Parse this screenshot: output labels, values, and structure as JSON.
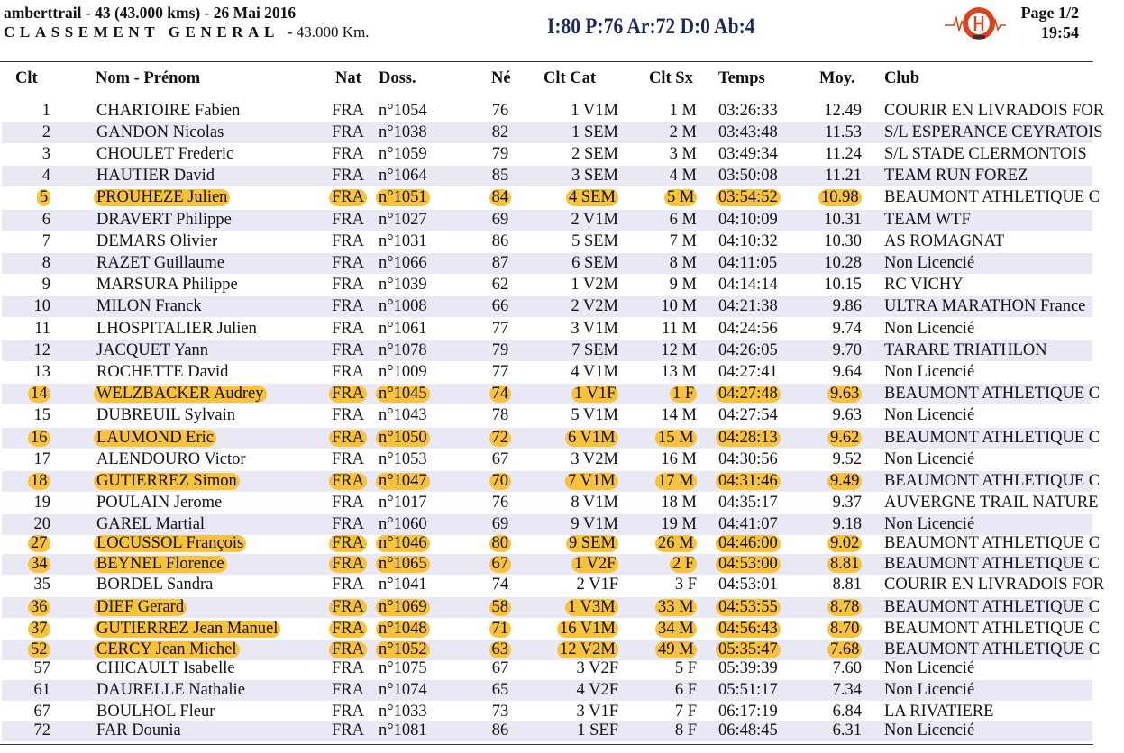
{
  "header": {
    "event_line": "amberttrail - 43 (43.000 kms) - 26 Mai 2016",
    "classement": "CLASSEMENT GENERAL",
    "distance": "- 43.000 Km.",
    "summary": "I:80 P:76 Ar:72 D:0 Ab:4",
    "page": "Page 1/2",
    "time": "19:54"
  },
  "columns": {
    "clt": "Clt",
    "name": "Nom - Prénom",
    "nat": "Nat",
    "doss": "Doss.",
    "ne": "Né",
    "cat": "Clt Cat",
    "sx": "Clt Sx",
    "tps": "Temps",
    "moy": "Moy.",
    "club": "Club"
  },
  "colors": {
    "highlight": "#f9c23c",
    "stripe": "#e9e9f5",
    "summary": "#1c2a5e",
    "logo": "#d9441c"
  },
  "rows": [
    {
      "clt": "1",
      "name": "CHARTOIRE Fabien",
      "nat": "FRA",
      "doss": "n°1054",
      "ne": "76",
      "cat": "1 V1M",
      "sx": "1 M",
      "tps": "03:26:33",
      "moy": "12.49",
      "club": "COURIR EN LIVRADOIS FOR",
      "hl": false
    },
    {
      "clt": "2",
      "name": "GANDON Nicolas",
      "nat": "FRA",
      "doss": "n°1038",
      "ne": "82",
      "cat": "1 SEM",
      "sx": "2 M",
      "tps": "03:43:48",
      "moy": "11.53",
      "club": "S/L ESPERANCE CEYRATOIS",
      "hl": false
    },
    {
      "clt": "3",
      "name": "CHOULET Frederic",
      "nat": "FRA",
      "doss": "n°1059",
      "ne": "79",
      "cat": "2 SEM",
      "sx": "3 M",
      "tps": "03:49:34",
      "moy": "11.24",
      "club": "S/L STADE CLERMONTOIS",
      "hl": false
    },
    {
      "clt": "4",
      "name": "HAUTIER David",
      "nat": "FRA",
      "doss": "n°1064",
      "ne": "85",
      "cat": "3 SEM",
      "sx": "4 M",
      "tps": "03:50:08",
      "moy": "11.21",
      "club": "TEAM RUN FOREZ",
      "hl": false
    },
    {
      "clt": "5",
      "name": "PROUHEZE Julien",
      "nat": "FRA",
      "doss": "n°1051",
      "ne": "84",
      "cat": "4 SEM",
      "sx": "5 M",
      "tps": "03:54:52",
      "moy": "10.98",
      "club": "BEAUMONT ATHLETIQUE C",
      "hl": true
    },
    {
      "clt": "6",
      "name": "DRAVERT Philippe",
      "nat": "FRA",
      "doss": "n°1027",
      "ne": "69",
      "cat": "2 V1M",
      "sx": "6 M",
      "tps": "04:10:09",
      "moy": "10.31",
      "club": "TEAM WTF",
      "hl": false
    },
    {
      "clt": "7",
      "name": "DEMARS Olivier",
      "nat": "FRA",
      "doss": "n°1031",
      "ne": "86",
      "cat": "5 SEM",
      "sx": "7 M",
      "tps": "04:10:32",
      "moy": "10.30",
      "club": "AS ROMAGNAT",
      "hl": false
    },
    {
      "clt": "8",
      "name": "RAZET Guillaume",
      "nat": "FRA",
      "doss": "n°1066",
      "ne": "87",
      "cat": "6 SEM",
      "sx": "8 M",
      "tps": "04:11:05",
      "moy": "10.28",
      "club": "Non Licencié",
      "hl": false
    },
    {
      "clt": "9",
      "name": "MARSURA Philippe",
      "nat": "FRA",
      "doss": "n°1039",
      "ne": "62",
      "cat": "1 V2M",
      "sx": "9 M",
      "tps": "04:14:14",
      "moy": "10.15",
      "club": "RC VICHY",
      "hl": false
    },
    {
      "clt": "10",
      "name": "MILON Franck",
      "nat": "FRA",
      "doss": "n°1008",
      "ne": "66",
      "cat": "2 V2M",
      "sx": "10 M",
      "tps": "04:21:38",
      "moy": "9.86",
      "club": "ULTRA MARATHON France",
      "hl": false
    },
    {
      "clt": "11",
      "name": "LHOSPITALIER Julien",
      "nat": "FRA",
      "doss": "n°1061",
      "ne": "77",
      "cat": "3 V1M",
      "sx": "11 M",
      "tps": "04:24:56",
      "moy": "9.74",
      "club": "Non Licencié",
      "hl": false
    },
    {
      "clt": "12",
      "name": "JACQUET Yann",
      "nat": "FRA",
      "doss": "n°1078",
      "ne": "79",
      "cat": "7 SEM",
      "sx": "12 M",
      "tps": "04:26:05",
      "moy": "9.70",
      "club": "TARARE TRIATHLON",
      "hl": false
    },
    {
      "clt": "13",
      "name": "ROCHETTE David",
      "nat": "FRA",
      "doss": "n°1009",
      "ne": "77",
      "cat": "4 V1M",
      "sx": "13 M",
      "tps": "04:27:41",
      "moy": "9.64",
      "club": "Non Licencié",
      "hl": false
    },
    {
      "clt": "14",
      "name": "WELZBACKER Audrey",
      "nat": "FRA",
      "doss": "n°1045",
      "ne": "74",
      "cat": "1 V1F",
      "sx": "1 F",
      "tps": "04:27:48",
      "moy": "9.63",
      "club": "BEAUMONT ATHLETIQUE C",
      "hl": true
    },
    {
      "clt": "15",
      "name": "DUBREUIL Sylvain",
      "nat": "FRA",
      "doss": "n°1043",
      "ne": "78",
      "cat": "5 V1M",
      "sx": "14 M",
      "tps": "04:27:54",
      "moy": "9.63",
      "club": "Non Licencié",
      "hl": false
    },
    {
      "clt": "16",
      "name": "LAUMOND Eric",
      "nat": "FRA",
      "doss": "n°1050",
      "ne": "72",
      "cat": "6 V1M",
      "sx": "15 M",
      "tps": "04:28:13",
      "moy": "9.62",
      "club": "BEAUMONT ATHLETIQUE C",
      "hl": true
    },
    {
      "clt": "17",
      "name": "ALENDOURO Victor",
      "nat": "FRA",
      "doss": "n°1053",
      "ne": "67",
      "cat": "3 V2M",
      "sx": "16 M",
      "tps": "04:30:56",
      "moy": "9.52",
      "club": "Non Licencié",
      "hl": false
    },
    {
      "clt": "18",
      "name": "GUTIERREZ Simon",
      "nat": "FRA",
      "doss": "n°1047",
      "ne": "70",
      "cat": "7 V1M",
      "sx": "17 M",
      "tps": "04:31:46",
      "moy": "9.49",
      "club": "BEAUMONT ATHLETIQUE C",
      "hl": true
    },
    {
      "clt": "19",
      "name": "POULAIN Jerome",
      "nat": "FRA",
      "doss": "n°1017",
      "ne": "76",
      "cat": "8 V1M",
      "sx": "18 M",
      "tps": "04:35:17",
      "moy": "9.37",
      "club": "AUVERGNE TRAIL NATURE",
      "hl": false
    },
    {
      "clt": "20",
      "name": "GAREL Martial",
      "nat": "FRA",
      "doss": "n°1060",
      "ne": "69",
      "cat": "9 V1M",
      "sx": "19 M",
      "tps": "04:41:07",
      "moy": "9.18",
      "club": "Non Licencié",
      "hl": false
    },
    {
      "clt": "27",
      "name": "LOCUSSOL François",
      "nat": "FRA",
      "doss": "n°1046",
      "ne": "80",
      "cat": "9 SEM",
      "sx": "26 M",
      "tps": "04:46:00",
      "moy": "9.02",
      "club": "BEAUMONT ATHLETIQUE C",
      "hl": true
    },
    {
      "clt": "34",
      "name": "BEYNEL Florence",
      "nat": "FRA",
      "doss": "n°1065",
      "ne": "67",
      "cat": "1 V2F",
      "sx": "2 F",
      "tps": "04:53:00",
      "moy": "8.81",
      "club": "BEAUMONT ATHLETIQUE C",
      "hl": true
    },
    {
      "clt": "35",
      "name": "BORDEL Sandra",
      "nat": "FRA",
      "doss": "n°1041",
      "ne": "74",
      "cat": "2 V1F",
      "sx": "3 F",
      "tps": "04:53:01",
      "moy": "8.81",
      "club": "COURIR EN LIVRADOIS FOR",
      "hl": false
    },
    {
      "clt": "36",
      "name": "DIEF Gerard",
      "nat": "FRA",
      "doss": "n°1069",
      "ne": "58",
      "cat": "1 V3M",
      "sx": "33 M",
      "tps": "04:53:55",
      "moy": "8.78",
      "club": "BEAUMONT ATHLETIQUE C",
      "hl": true
    },
    {
      "clt": "37",
      "name": "GUTIERREZ Jean Manuel",
      "nat": "FRA",
      "doss": "n°1048",
      "ne": "71",
      "cat": "16 V1M",
      "sx": "34 M",
      "tps": "04:56:43",
      "moy": "8.70",
      "club": "BEAUMONT ATHLETIQUE C",
      "hl": true
    },
    {
      "clt": "52",
      "name": "CERCY Jean Michel",
      "nat": "FRA",
      "doss": "n°1052",
      "ne": "63",
      "cat": "12 V2M",
      "sx": "49 M",
      "tps": "05:35:47",
      "moy": "7.68",
      "club": "BEAUMONT ATHLETIQUE C",
      "hl": true
    },
    {
      "clt": "57",
      "name": "CHICAULT Isabelle",
      "nat": "FRA",
      "doss": "n°1075",
      "ne": "67",
      "cat": "3 V2F",
      "sx": "5 F",
      "tps": "05:39:39",
      "moy": "7.60",
      "club": "Non Licencié",
      "hl": false
    },
    {
      "clt": "61",
      "name": "DAURELLE Nathalie",
      "nat": "FRA",
      "doss": "n°1074",
      "ne": "65",
      "cat": "4 V2F",
      "sx": "6 F",
      "tps": "05:51:17",
      "moy": "7.34",
      "club": "Non Licencié",
      "hl": false
    },
    {
      "clt": "67",
      "name": "BOULHOL Fleur",
      "nat": "FRA",
      "doss": "n°1033",
      "ne": "73",
      "cat": "3 V1F",
      "sx": "7 F",
      "tps": "06:17:19",
      "moy": "6.84",
      "club": "LA RIVATIERE",
      "hl": false
    },
    {
      "clt": "72",
      "name": "FAR Dounia",
      "nat": "FRA",
      "doss": "n°1081",
      "ne": "86",
      "cat": "1 SEF",
      "sx": "8 F",
      "tps": "06:48:45",
      "moy": "6.31",
      "club": "Non Licencié",
      "hl": false
    }
  ]
}
